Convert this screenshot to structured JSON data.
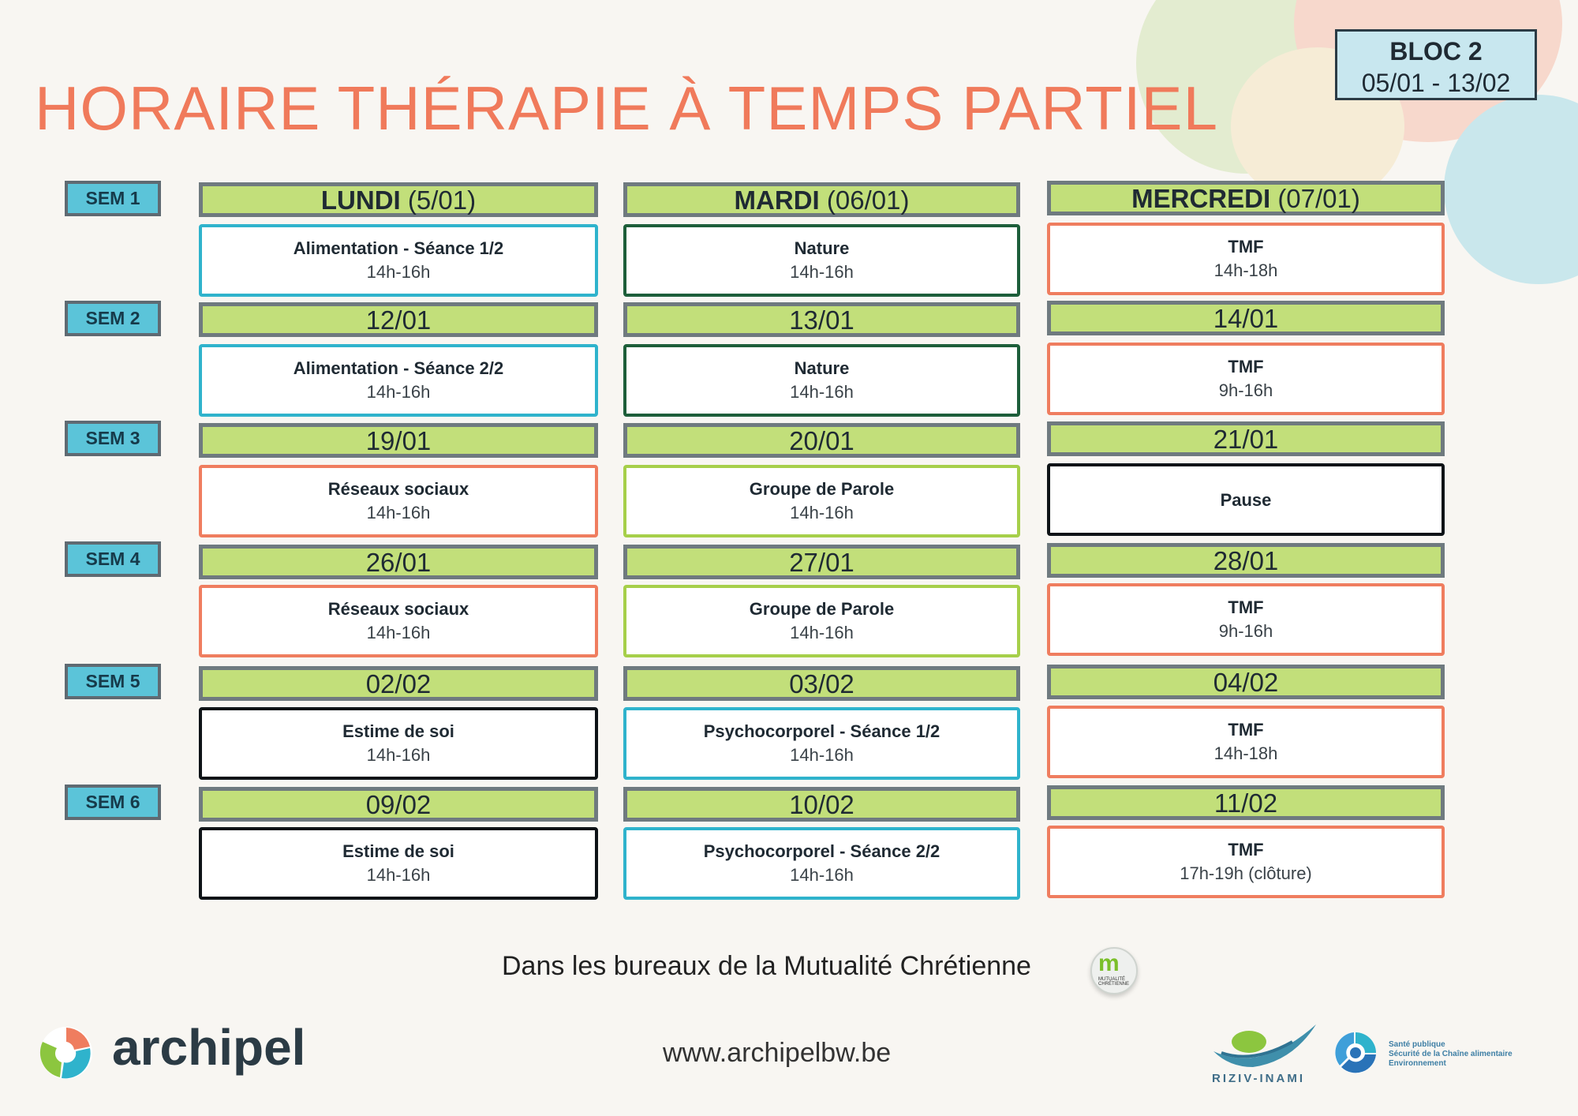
{
  "header": {
    "title": "HORAIRE THÉRAPIE À TEMPS PARTIEL",
    "bloc_label": "BLOC 2",
    "bloc_dates": "05/01 - 13/02"
  },
  "weeks": [
    {
      "label": "SEM 1",
      "days": [
        {
          "day": "LUNDI",
          "date": "(5/01)",
          "activity": "Alimentation - Séance 1/2",
          "time": "14h-16h",
          "color": "#2fb3cc"
        },
        {
          "day": "MARDI",
          "date": "(06/01)",
          "activity": "Nature",
          "time": "14h-16h",
          "color": "#1d5e3a"
        },
        {
          "day": "MERCREDI",
          "date": "(07/01)",
          "activity": "TMF",
          "time": "14h-18h",
          "color": "#ef7d5f"
        }
      ]
    },
    {
      "label": "SEM 2",
      "days": [
        {
          "date": "12/01",
          "activity": "Alimentation - Séance 2/2",
          "time": "14h-16h"
        },
        {
          "date": "13/01",
          "activity": "Nature",
          "time": "14h-16h"
        },
        {
          "date": "14/01",
          "activity": "TMF",
          "time": "9h-16h"
        }
      ]
    },
    {
      "label": "SEM 3",
      "days": [
        {
          "date": "19/01",
          "activity": "Réseaux sociaux",
          "time": "14h-16h"
        },
        {
          "date": "20/01",
          "activity": "Groupe de Parole",
          "time": "14h-16h"
        },
        {
          "date": "21/01",
          "activity": "Pause",
          "time": ""
        }
      ]
    },
    {
      "label": "SEM 4",
      "days": [
        {
          "date": "26/01",
          "activity": "Réseaux sociaux",
          "time": "14h-16h"
        },
        {
          "date": "27/01",
          "activity": "Groupe de Parole",
          "time": "14h-16h"
        },
        {
          "date": "28/01",
          "activity": "TMF",
          "time": "9h-16h"
        }
      ]
    },
    {
      "label": "SEM 5",
      "days": [
        {
          "date": "02/02",
          "activity": "Estime de soi",
          "time": "14h-16h"
        },
        {
          "date": "03/02",
          "activity": "Psychocorporel - Séance 1/2",
          "time": "14h-16h"
        },
        {
          "date": "04/02",
          "activity": "TMF",
          "time": "14h-18h"
        }
      ]
    },
    {
      "label": "SEM 6",
      "days": [
        {
          "date": "09/02",
          "activity": "Estime de soi",
          "time": "14h-16h"
        },
        {
          "date": "10/02",
          "activity": "Psychocorporel - Séance 2/2",
          "time": "14h-16h"
        },
        {
          "date": "11/02",
          "activity": "TMF",
          "time": "17h-19h (clôture)"
        }
      ]
    }
  ],
  "footer": {
    "location": "Dans les bureaux de la Mutualité Chrétienne",
    "website": "www.archipelbw.be",
    "archipel_logo_text": "archipel",
    "mc_logo_text": "MUTUALITÉ CHRÉTIENNE",
    "riziv_text": "RIZIV-INAMI",
    "spf_text_1": "Santé publique",
    "spf_text_2": "Sécurité de la Chaîne alimentaire",
    "spf_text_3": "Environnement"
  },
  "colors": {
    "title": "#f07a5b",
    "header_green": "#c2df7a",
    "sem_blue": "#5bc4d9",
    "border_blue": "#2fb3cc",
    "border_dark_green": "#1d5e3a",
    "border_orange": "#ef7d5f",
    "border_light_green": "#a6cf4a",
    "border_black": "#0e1317"
  }
}
